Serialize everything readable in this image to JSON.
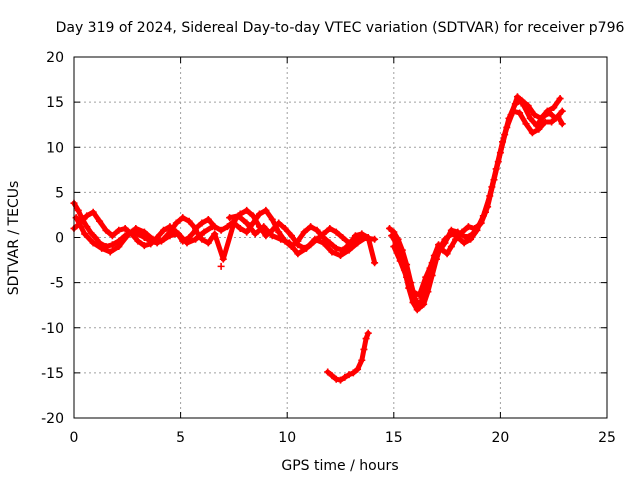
{
  "chart_data": {
    "type": "scatter",
    "title": "Day 319 of 2024, Sidereal Day-to-day VTEC variation (SDTVAR) for receiver p796",
    "xlabel": "GPS time / hours",
    "ylabel": "SDTVAR / TECUs",
    "xlim": [
      0,
      25
    ],
    "ylim": [
      -20,
      20
    ],
    "xticks": [
      0,
      5,
      10,
      15,
      20,
      25
    ],
    "xtick_labels": [
      "0",
      "5",
      "10",
      "15",
      "20",
      "25"
    ],
    "yticks": [
      -20,
      -15,
      -10,
      -5,
      0,
      5,
      10,
      15,
      20
    ],
    "ytick_labels": [
      "-20",
      "-15",
      "-10",
      "-5",
      "0",
      "5",
      "10",
      "15",
      "20"
    ],
    "grid": true,
    "marker": "+",
    "series": [
      {
        "name": "track-main-a",
        "color": "#ff0000",
        "points": [
          [
            0.0,
            3.8
          ],
          [
            0.2,
            3.0
          ],
          [
            0.4,
            2.0
          ],
          [
            0.6,
            1.2
          ],
          [
            0.8,
            0.5
          ],
          [
            1.0,
            0.0
          ],
          [
            1.2,
            -0.6
          ],
          [
            1.5,
            -1.0
          ],
          [
            1.8,
            -0.8
          ],
          [
            2.1,
            -0.4
          ],
          [
            2.4,
            0.2
          ],
          [
            2.7,
            0.6
          ],
          [
            3.0,
            0.4
          ],
          [
            3.3,
            0.0
          ],
          [
            3.6,
            -0.4
          ],
          [
            3.9,
            -0.6
          ],
          [
            4.2,
            -0.2
          ],
          [
            4.5,
            0.6
          ],
          [
            4.8,
            1.6
          ],
          [
            5.1,
            2.2
          ],
          [
            5.4,
            1.8
          ],
          [
            5.7,
            1.0
          ],
          [
            6.0,
            1.6
          ],
          [
            6.3,
            2.0
          ],
          [
            6.6,
            1.2
          ],
          [
            6.9,
            0.8
          ],
          [
            7.2,
            1.2
          ],
          [
            7.5,
            1.8
          ],
          [
            7.8,
            2.6
          ],
          [
            8.1,
            3.0
          ],
          [
            8.4,
            2.4
          ],
          [
            8.7,
            1.2
          ],
          [
            9.0,
            0.2
          ],
          [
            9.3,
            0.8
          ],
          [
            9.6,
            1.6
          ],
          [
            9.9,
            1.0
          ],
          [
            10.2,
            0.2
          ],
          [
            10.5,
            -0.8
          ],
          [
            10.8,
            -1.2
          ],
          [
            11.1,
            -0.8
          ],
          [
            11.4,
            -0.2
          ],
          [
            11.7,
            0.4
          ],
          [
            12.0,
            1.0
          ],
          [
            12.3,
            0.6
          ],
          [
            12.6,
            0.0
          ],
          [
            12.9,
            -0.6
          ],
          [
            13.2,
            -0.4
          ],
          [
            13.5,
            0.0
          ],
          [
            13.8,
            -0.1
          ],
          [
            14.1,
            -0.2
          ]
        ]
      },
      {
        "name": "track-main-b",
        "color": "#ff0000",
        "points": [
          [
            0.0,
            1.0
          ],
          [
            0.3,
            1.6
          ],
          [
            0.6,
            2.4
          ],
          [
            0.9,
            2.8
          ],
          [
            1.2,
            1.8
          ],
          [
            1.5,
            0.8
          ],
          [
            1.8,
            0.2
          ],
          [
            2.1,
            0.8
          ],
          [
            2.4,
            1.0
          ],
          [
            2.7,
            0.4
          ],
          [
            3.0,
            -0.4
          ],
          [
            3.3,
            -0.9
          ],
          [
            3.6,
            -0.7
          ],
          [
            3.9,
            0.0
          ],
          [
            4.2,
            0.8
          ],
          [
            4.5,
            1.2
          ],
          [
            4.8,
            0.6
          ],
          [
            5.1,
            -0.4
          ],
          [
            5.4,
            0.0
          ],
          [
            5.7,
            0.8
          ],
          [
            6.0,
            -0.2
          ],
          [
            6.3,
            -0.6
          ],
          [
            6.6,
            0.4
          ],
          [
            7.0,
            -2.4
          ],
          [
            7.5,
            1.6
          ],
          [
            7.8,
            1.0
          ],
          [
            8.1,
            0.6
          ],
          [
            8.4,
            1.6
          ],
          [
            8.7,
            2.6
          ],
          [
            9.0,
            3.0
          ],
          [
            9.3,
            2.0
          ],
          [
            9.6,
            0.6
          ],
          [
            9.9,
            -0.4
          ],
          [
            10.2,
            -1.0
          ],
          [
            10.5,
            -0.4
          ],
          [
            10.8,
            0.6
          ],
          [
            11.1,
            1.2
          ],
          [
            11.4,
            0.8
          ],
          [
            11.7,
            0.0
          ],
          [
            12.0,
            -0.6
          ],
          [
            12.3,
            -1.2
          ],
          [
            12.6,
            -1.4
          ],
          [
            12.9,
            -0.8
          ],
          [
            13.2,
            0.2
          ],
          [
            13.5,
            0.4
          ],
          [
            13.8,
            0.0
          ],
          [
            14.1,
            -2.8
          ]
        ]
      },
      {
        "name": "track-main-c",
        "color": "#ff0000",
        "points": [
          [
            0.1,
            2.2
          ],
          [
            0.5,
            0.4
          ],
          [
            0.9,
            -0.6
          ],
          [
            1.3,
            -1.2
          ],
          [
            1.7,
            -1.6
          ],
          [
            2.1,
            -1.0
          ],
          [
            2.5,
            0.2
          ],
          [
            2.9,
            1.0
          ],
          [
            3.3,
            0.6
          ],
          [
            3.7,
            -0.2
          ],
          [
            4.1,
            -0.4
          ],
          [
            4.5,
            0.2
          ],
          [
            4.9,
            0.4
          ],
          [
            5.3,
            -0.6
          ],
          [
            5.7,
            -0.2
          ],
          [
            6.1,
            0.6
          ],
          [
            6.5,
            1.2
          ],
          [
            6.9,
            -3.2
          ],
          [
            7.3,
            2.2
          ],
          [
            7.7,
            2.4
          ],
          [
            8.1,
            1.6
          ],
          [
            8.5,
            0.4
          ],
          [
            8.9,
            1.2
          ],
          [
            9.3,
            0.2
          ],
          [
            9.7,
            -0.2
          ],
          [
            10.1,
            -0.6
          ],
          [
            10.5,
            -1.8
          ],
          [
            10.9,
            -1.2
          ],
          [
            11.3,
            -0.2
          ],
          [
            11.7,
            -0.6
          ],
          [
            12.1,
            -1.6
          ],
          [
            12.5,
            -2.0
          ],
          [
            12.9,
            -1.4
          ],
          [
            13.3,
            -0.6
          ],
          [
            13.7,
            0.0
          ]
        ]
      },
      {
        "name": "track-evening-dip-a",
        "color": "#ff0000",
        "points": [
          [
            14.8,
            1.0
          ],
          [
            15.0,
            0.6
          ],
          [
            15.2,
            -0.2
          ],
          [
            15.4,
            -1.4
          ],
          [
            15.6,
            -3.0
          ],
          [
            15.8,
            -5.0
          ],
          [
            16.0,
            -6.8
          ],
          [
            16.2,
            -7.8
          ],
          [
            16.4,
            -7.4
          ],
          [
            16.6,
            -6.0
          ],
          [
            16.8,
            -4.2
          ],
          [
            17.0,
            -2.4
          ],
          [
            17.2,
            -1.0
          ],
          [
            17.4,
            -0.2
          ],
          [
            17.6,
            0.2
          ],
          [
            17.8,
            0.4
          ],
          [
            18.0,
            0.0
          ],
          [
            18.3,
            -0.6
          ],
          [
            18.6,
            -0.2
          ],
          [
            18.9,
            0.8
          ],
          [
            19.2,
            2.4
          ],
          [
            19.5,
            4.6
          ],
          [
            19.8,
            7.6
          ],
          [
            20.1,
            10.6
          ],
          [
            20.4,
            13.2
          ],
          [
            20.7,
            14.8
          ],
          [
            21.0,
            15.2
          ],
          [
            21.3,
            14.6
          ],
          [
            21.6,
            13.6
          ],
          [
            21.9,
            13.2
          ],
          [
            22.2,
            14.0
          ],
          [
            22.5,
            14.4
          ],
          [
            22.8,
            15.4
          ]
        ]
      },
      {
        "name": "track-evening-dip-b",
        "color": "#ff0000",
        "points": [
          [
            14.9,
            0.2
          ],
          [
            15.1,
            -0.6
          ],
          [
            15.3,
            -1.8
          ],
          [
            15.5,
            -3.6
          ],
          [
            15.7,
            -5.6
          ],
          [
            15.9,
            -7.2
          ],
          [
            16.1,
            -8.0
          ],
          [
            16.3,
            -7.0
          ],
          [
            16.5,
            -5.2
          ],
          [
            16.7,
            -3.4
          ],
          [
            16.9,
            -2.0
          ],
          [
            17.1,
            -0.8
          ],
          [
            17.3,
            -1.4
          ],
          [
            17.5,
            -1.8
          ],
          [
            17.7,
            -1.0
          ],
          [
            17.9,
            -0.2
          ],
          [
            18.2,
            0.6
          ],
          [
            18.5,
            1.2
          ],
          [
            18.8,
            1.0
          ],
          [
            19.1,
            1.6
          ],
          [
            19.4,
            3.4
          ],
          [
            19.7,
            6.4
          ],
          [
            20.0,
            9.4
          ],
          [
            20.3,
            12.2
          ],
          [
            20.6,
            14.0
          ],
          [
            20.9,
            13.8
          ],
          [
            21.2,
            12.6
          ],
          [
            21.5,
            11.6
          ],
          [
            21.8,
            12.0
          ],
          [
            22.1,
            12.8
          ],
          [
            22.4,
            12.8
          ],
          [
            22.7,
            13.4
          ],
          [
            22.9,
            12.6
          ]
        ]
      },
      {
        "name": "track-evening-dip-c",
        "color": "#ff0000",
        "points": [
          [
            15.0,
            -1.0
          ],
          [
            15.3,
            -2.6
          ],
          [
            15.6,
            -4.4
          ],
          [
            15.9,
            -6.0
          ],
          [
            16.2,
            -6.4
          ],
          [
            16.5,
            -4.4
          ],
          [
            16.8,
            -2.8
          ],
          [
            17.1,
            -1.6
          ],
          [
            17.4,
            -0.6
          ],
          [
            17.7,
            0.8
          ],
          [
            18.0,
            0.6
          ],
          [
            18.4,
            0.0
          ],
          [
            18.7,
            0.4
          ],
          [
            19.0,
            1.4
          ],
          [
            19.3,
            2.8
          ],
          [
            19.6,
            5.6
          ],
          [
            19.9,
            8.4
          ],
          [
            20.2,
            11.4
          ],
          [
            20.5,
            13.6
          ],
          [
            20.8,
            15.6
          ],
          [
            21.1,
            14.6
          ],
          [
            21.4,
            13.2
          ],
          [
            21.7,
            12.4
          ],
          [
            22.0,
            13.4
          ],
          [
            22.3,
            13.8
          ],
          [
            22.6,
            13.2
          ],
          [
            22.9,
            14.0
          ]
        ]
      },
      {
        "name": "track-negative-segment",
        "color": "#ff0000",
        "points": [
          [
            11.9,
            -14.9
          ],
          [
            12.1,
            -15.3
          ],
          [
            12.3,
            -15.7
          ],
          [
            12.5,
            -15.8
          ],
          [
            12.7,
            -15.5
          ],
          [
            12.9,
            -15.2
          ],
          [
            13.1,
            -15.0
          ],
          [
            13.3,
            -14.6
          ],
          [
            13.5,
            -13.6
          ],
          [
            13.6,
            -12.4
          ],
          [
            13.7,
            -11.2
          ],
          [
            13.8,
            -10.6
          ]
        ]
      }
    ]
  }
}
